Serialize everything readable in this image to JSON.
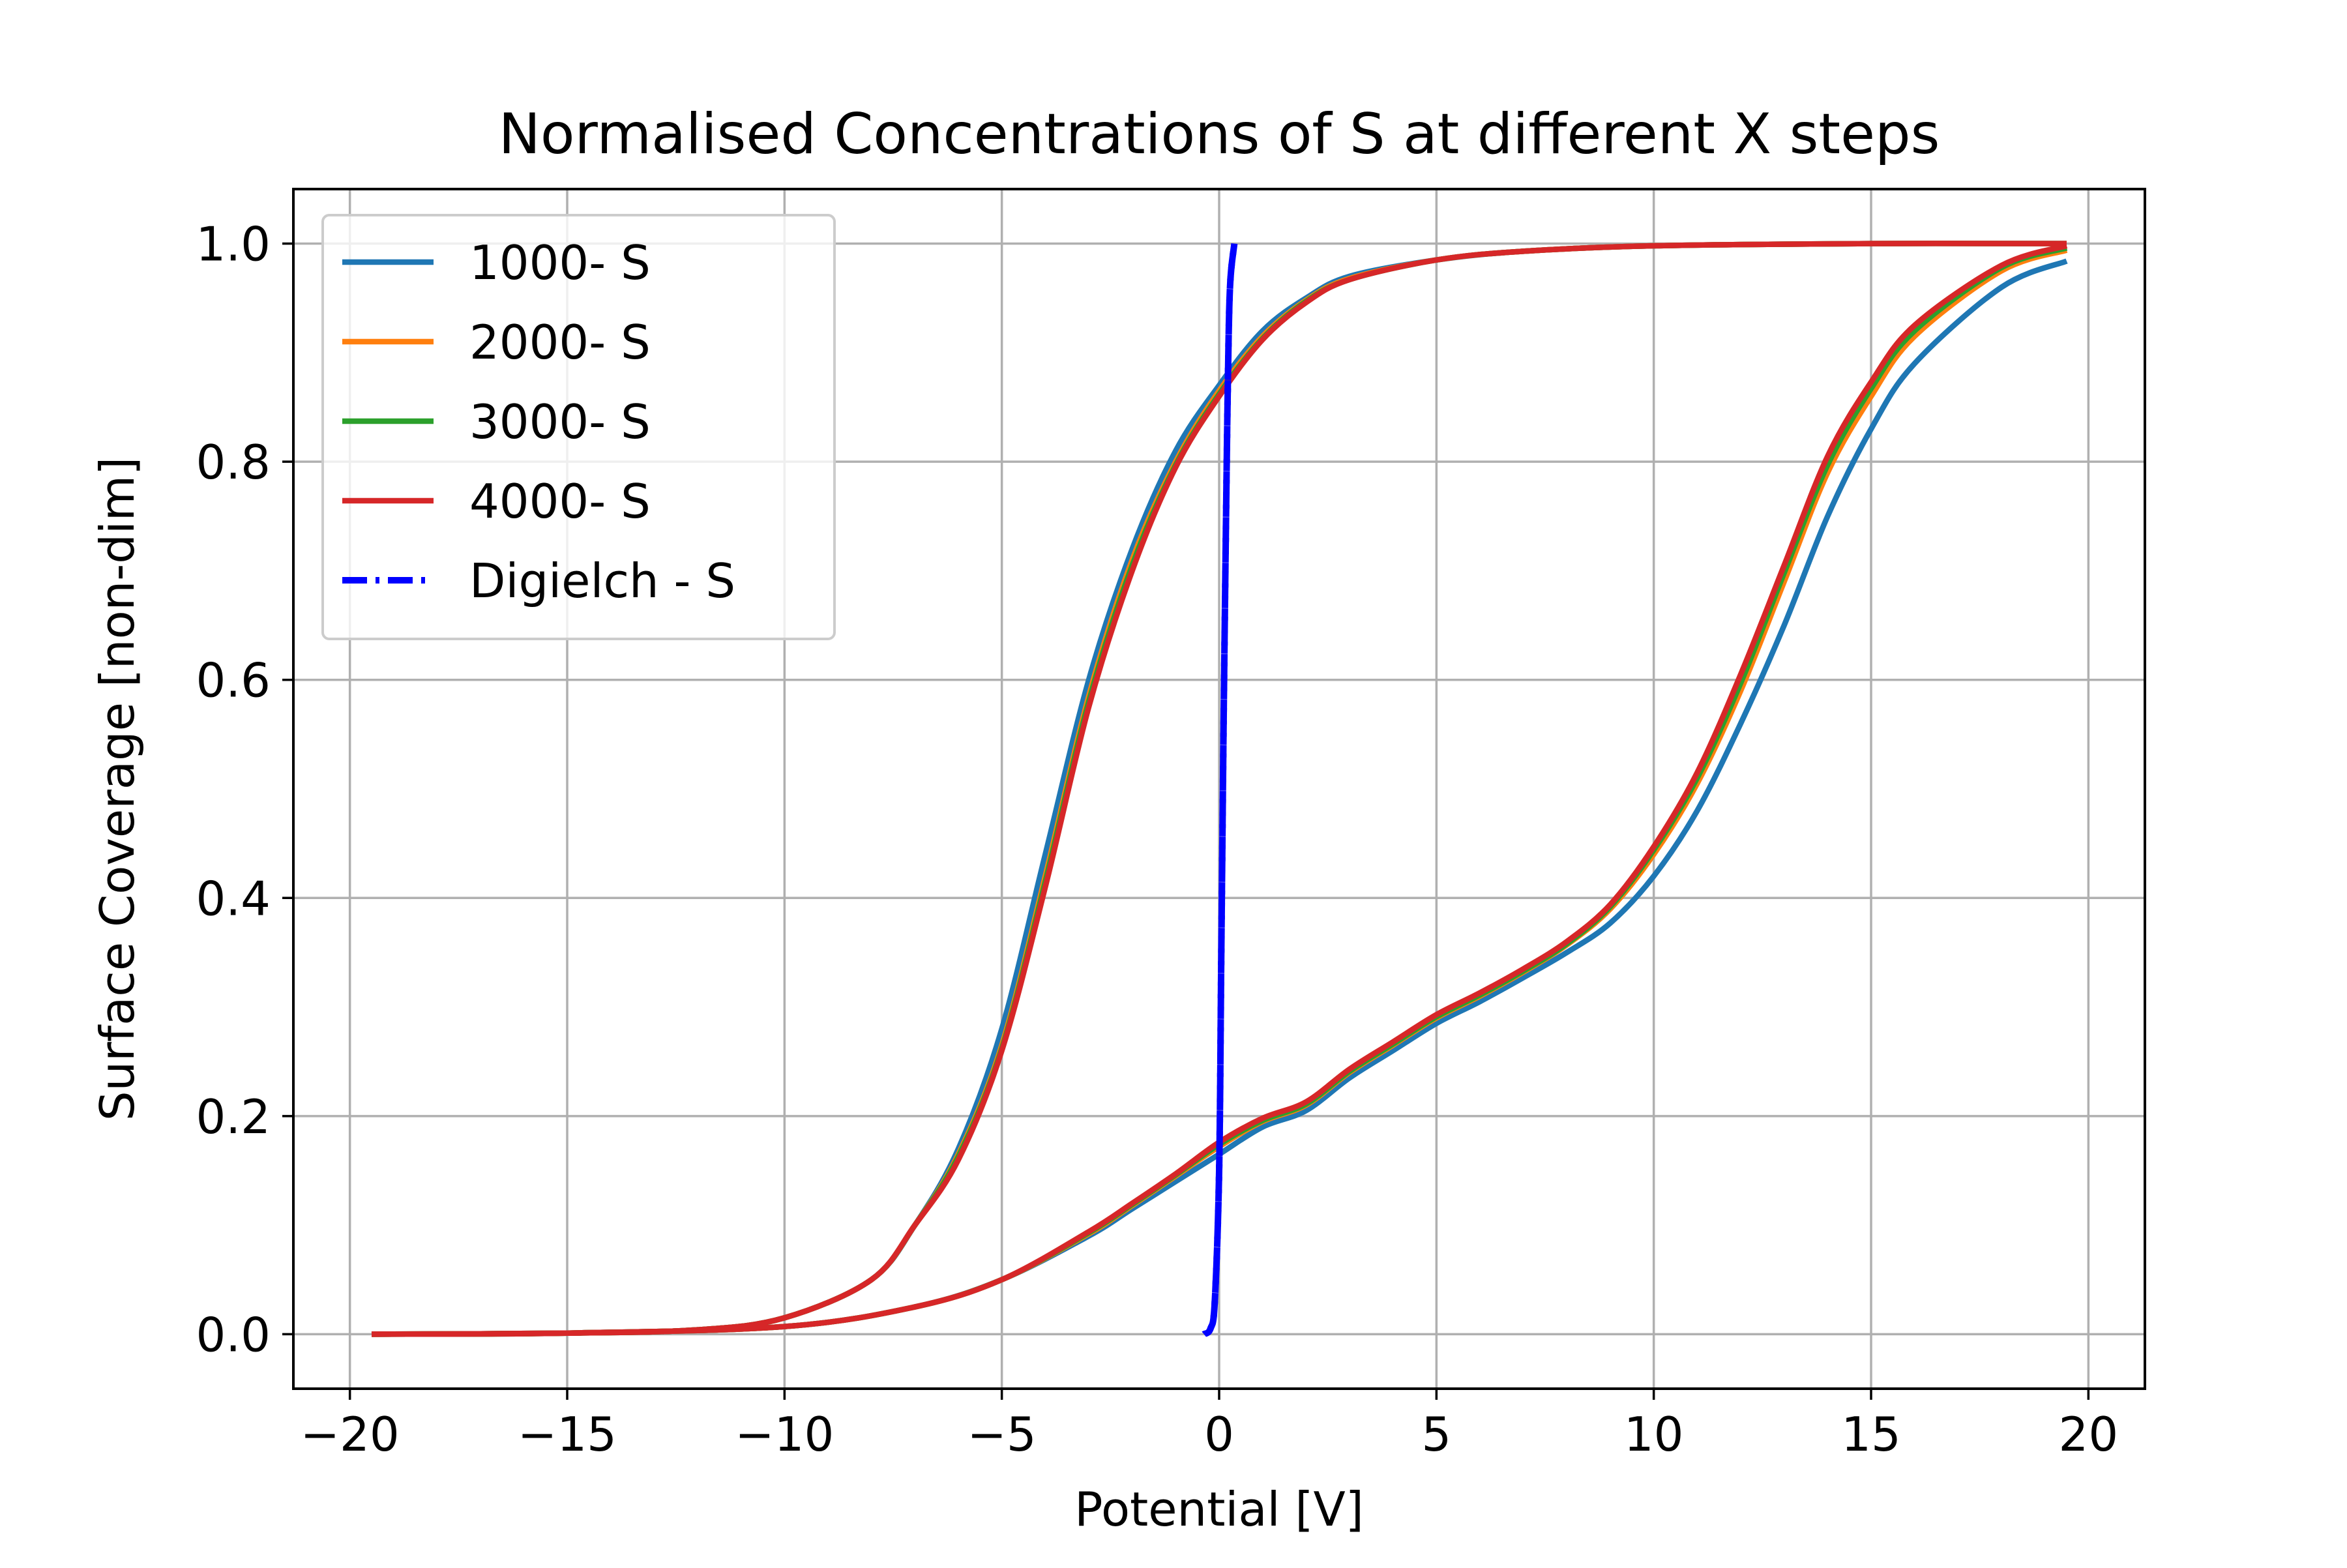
{
  "chart_data": {
    "type": "line",
    "title": "Normalised Concentrations of S at different X steps",
    "xlabel": "Potential [V]",
    "ylabel": "Surface Coverage [non-dim]",
    "xlim": [
      -21.3,
      21.3
    ],
    "ylim": [
      -0.05,
      1.05
    ],
    "xticks": [
      -20,
      -15,
      -10,
      -5,
      0,
      5,
      10,
      15,
      20
    ],
    "xtick_labels": [
      "−20",
      "−15",
      "−10",
      "−5",
      "0",
      "5",
      "10",
      "15",
      "20"
    ],
    "yticks": [
      0.0,
      0.2,
      0.4,
      0.6,
      0.8,
      1.0
    ],
    "ytick_labels": [
      "0.0",
      "0.2",
      "0.4",
      "0.6",
      "0.8",
      "1.0"
    ],
    "grid": true,
    "legend_position": "upper-left",
    "series": [
      {
        "name": "1000- S",
        "color": "#1f77b4",
        "style": "solid",
        "forward": {
          "x": [
            -19.5,
            -15,
            -12,
            -10,
            -8,
            -7,
            -6,
            -5,
            -4,
            -3,
            -2,
            -1,
            0,
            1,
            2,
            3,
            5,
            7,
            10,
            15,
            19.5
          ],
          "y": [
            0.0,
            0.001,
            0.004,
            0.015,
            0.05,
            0.1,
            0.17,
            0.28,
            0.44,
            0.6,
            0.72,
            0.81,
            0.87,
            0.92,
            0.95,
            0.97,
            0.985,
            0.993,
            0.998,
            1.0,
            1.0
          ]
        },
        "reverse": {
          "x": [
            19.5,
            18,
            16,
            15,
            14,
            13,
            12,
            11,
            10,
            9,
            8,
            7,
            6,
            5,
            4,
            3,
            2,
            1,
            0,
            -1,
            -2,
            -3,
            -5,
            -7,
            -10,
            -15,
            -19.5
          ],
          "y": [
            0.984,
            0.96,
            0.89,
            0.83,
            0.75,
            0.65,
            0.56,
            0.48,
            0.42,
            0.377,
            0.35,
            0.327,
            0.305,
            0.285,
            0.26,
            0.235,
            0.205,
            0.19,
            0.165,
            0.14,
            0.115,
            0.09,
            0.05,
            0.025,
            0.007,
            0.001,
            0.0
          ]
        }
      },
      {
        "name": "2000- S",
        "color": "#ff7f0e",
        "style": "solid",
        "forward": {
          "x": [
            -19.5,
            -15,
            -12,
            -10,
            -8,
            -7,
            -6,
            -5,
            -4,
            -3,
            -2,
            -1,
            0,
            1,
            2,
            3,
            5,
            7,
            10,
            15,
            19.5
          ],
          "y": [
            0.0,
            0.001,
            0.004,
            0.015,
            0.05,
            0.1,
            0.165,
            0.265,
            0.42,
            0.585,
            0.71,
            0.8,
            0.865,
            0.915,
            0.948,
            0.968,
            0.985,
            0.993,
            0.998,
            1.0,
            1.0
          ]
        },
        "reverse": {
          "x": [
            19.5,
            18,
            16,
            15,
            14,
            13,
            12,
            11,
            10,
            9,
            8,
            7,
            6,
            5,
            4,
            3,
            2,
            1,
            0,
            -1,
            -2,
            -3,
            -5,
            -7,
            -10,
            -15,
            -19.5
          ],
          "y": [
            0.994,
            0.975,
            0.915,
            0.86,
            0.79,
            0.69,
            0.59,
            0.505,
            0.44,
            0.39,
            0.357,
            0.332,
            0.31,
            0.29,
            0.265,
            0.24,
            0.21,
            0.195,
            0.172,
            0.145,
            0.118,
            0.092,
            0.05,
            0.025,
            0.007,
            0.001,
            0.0
          ]
        }
      },
      {
        "name": "3000- S",
        "color": "#2ca02c",
        "style": "solid",
        "forward": {
          "x": [
            -19.5,
            -15,
            -12,
            -10,
            -8,
            -7,
            -6,
            -5,
            -4,
            -3,
            -2,
            -1,
            0,
            1,
            2,
            3,
            5,
            7,
            10,
            15,
            19.5
          ],
          "y": [
            0.0,
            0.001,
            0.004,
            0.015,
            0.05,
            0.1,
            0.163,
            0.262,
            0.415,
            0.58,
            0.705,
            0.797,
            0.862,
            0.913,
            0.947,
            0.967,
            0.985,
            0.993,
            0.998,
            1.0,
            1.0
          ]
        },
        "reverse": {
          "x": [
            19.5,
            18,
            16,
            15,
            14,
            13,
            12,
            11,
            10,
            9,
            8,
            7,
            6,
            5,
            4,
            3,
            2,
            1,
            0,
            -1,
            -2,
            -3,
            -5,
            -7,
            -10,
            -15,
            -19.5
          ],
          "y": [
            0.996,
            0.978,
            0.92,
            0.867,
            0.797,
            0.698,
            0.597,
            0.51,
            0.444,
            0.392,
            0.358,
            0.333,
            0.311,
            0.291,
            0.266,
            0.241,
            0.211,
            0.196,
            0.174,
            0.146,
            0.119,
            0.093,
            0.05,
            0.025,
            0.007,
            0.001,
            0.0
          ]
        }
      },
      {
        "name": "4000- S",
        "color": "#d62728",
        "style": "solid",
        "forward": {
          "x": [
            -19.5,
            -15,
            -12,
            -10,
            -8,
            -7,
            -6,
            -5,
            -4,
            -3,
            -2,
            -1,
            0,
            1,
            2,
            3,
            5,
            7,
            10,
            15,
            19.5
          ],
          "y": [
            0.0,
            0.001,
            0.004,
            0.015,
            0.05,
            0.1,
            0.16,
            0.26,
            0.41,
            0.575,
            0.7,
            0.795,
            0.86,
            0.912,
            0.946,
            0.967,
            0.985,
            0.993,
            0.998,
            1.0,
            1.0
          ]
        },
        "reverse": {
          "x": [
            19.5,
            18,
            16,
            15,
            14,
            13,
            12,
            11,
            10,
            9,
            8,
            7,
            6,
            5,
            4,
            3,
            2,
            1,
            0,
            -1,
            -2,
            -3,
            -5,
            -7,
            -10,
            -15,
            -19.5
          ],
          "y": [
            0.998,
            0.98,
            0.925,
            0.873,
            0.805,
            0.705,
            0.605,
            0.515,
            0.447,
            0.394,
            0.36,
            0.335,
            0.313,
            0.293,
            0.268,
            0.243,
            0.213,
            0.198,
            0.176,
            0.147,
            0.12,
            0.094,
            0.05,
            0.025,
            0.007,
            0.001,
            0.0
          ]
        }
      },
      {
        "name": "Digielch - S",
        "color": "#0000ff",
        "style": "dashdot",
        "forward": {
          "x": [
            -0.35,
            -0.2,
            -0.1,
            0.0,
            0.05,
            0.1,
            0.15,
            0.2,
            0.25,
            0.35
          ],
          "y": [
            0.0,
            0.005,
            0.03,
            0.15,
            0.35,
            0.55,
            0.72,
            0.87,
            0.96,
            1.0
          ]
        },
        "reverse": {
          "x": [
            0.35,
            0.25,
            0.2,
            0.15,
            0.1,
            0.05,
            0.0,
            -0.1,
            -0.2,
            -0.35
          ],
          "y": [
            1.0,
            0.96,
            0.87,
            0.72,
            0.55,
            0.35,
            0.15,
            0.03,
            0.005,
            0.0
          ]
        }
      }
    ]
  }
}
